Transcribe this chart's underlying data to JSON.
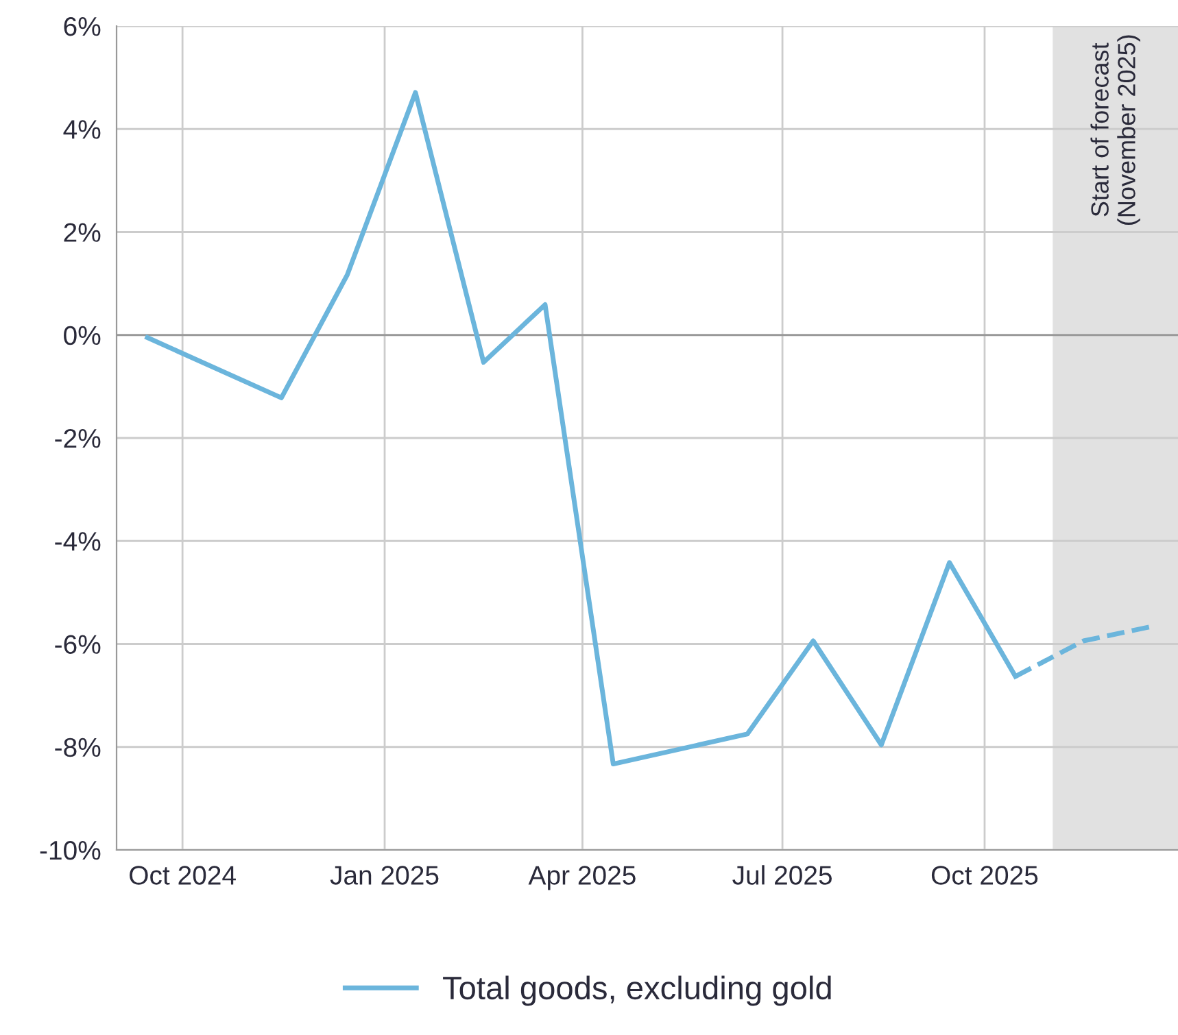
{
  "chart_data": {
    "type": "line",
    "x": [
      "2024-09-15",
      "2024-11-15",
      "2024-12-15",
      "2025-01-15",
      "2025-02-15",
      "2025-03-15",
      "2025-04-15",
      "2025-06-15",
      "2025-07-15",
      "2025-08-15",
      "2025-09-15",
      "2025-10-15"
    ],
    "series": [
      {
        "name": "Total goods, excluding gold",
        "color": "#6bb5dc",
        "line_style": "solid",
        "values": [
          -0.05,
          -1.22,
          1.17,
          4.71,
          -0.53,
          0.59,
          -8.33,
          -7.75,
          -5.94,
          -7.96,
          -4.42,
          -6.63
        ]
      },
      {
        "color": "#6bb5dc",
        "line_style": "dashed",
        "x": [
          "2025-10-15",
          "2025-11-15",
          "2025-12-15"
        ],
        "values": [
          -6.63,
          -5.94,
          -5.67
        ]
      }
    ],
    "xlim": [
      "2024-09-01",
      "2025-12-28"
    ],
    "xticks": [
      {
        "value": "2024-10-01",
        "label": "Oct 2024"
      },
      {
        "value": "2025-01-01",
        "label": "Jan 2025"
      },
      {
        "value": "2025-04-01",
        "label": "Apr 2025"
      },
      {
        "value": "2025-07-01",
        "label": "Jul 2025"
      },
      {
        "value": "2025-10-01",
        "label": "Oct 2025"
      }
    ],
    "ylim": [
      -10,
      6
    ],
    "yticks": [
      {
        "value": -10,
        "label": "-10%"
      },
      {
        "value": -8,
        "label": "-8%"
      },
      {
        "value": -6,
        "label": "-6%"
      },
      {
        "value": -4,
        "label": "-4%"
      },
      {
        "value": -2,
        "label": "-2%"
      },
      {
        "value": 0,
        "label": "0%"
      },
      {
        "value": 2,
        "label": "2%"
      },
      {
        "value": 4,
        "label": "4%"
      },
      {
        "value": 6,
        "label": "6%"
      }
    ],
    "bands": [
      {
        "axis": "x",
        "from": "2025-11-01",
        "to": "2025-12-28",
        "label": "Start of forecast\n(November 2025)",
        "color": "#e1e1e1"
      }
    ],
    "grid": true,
    "legend": "bottom"
  }
}
